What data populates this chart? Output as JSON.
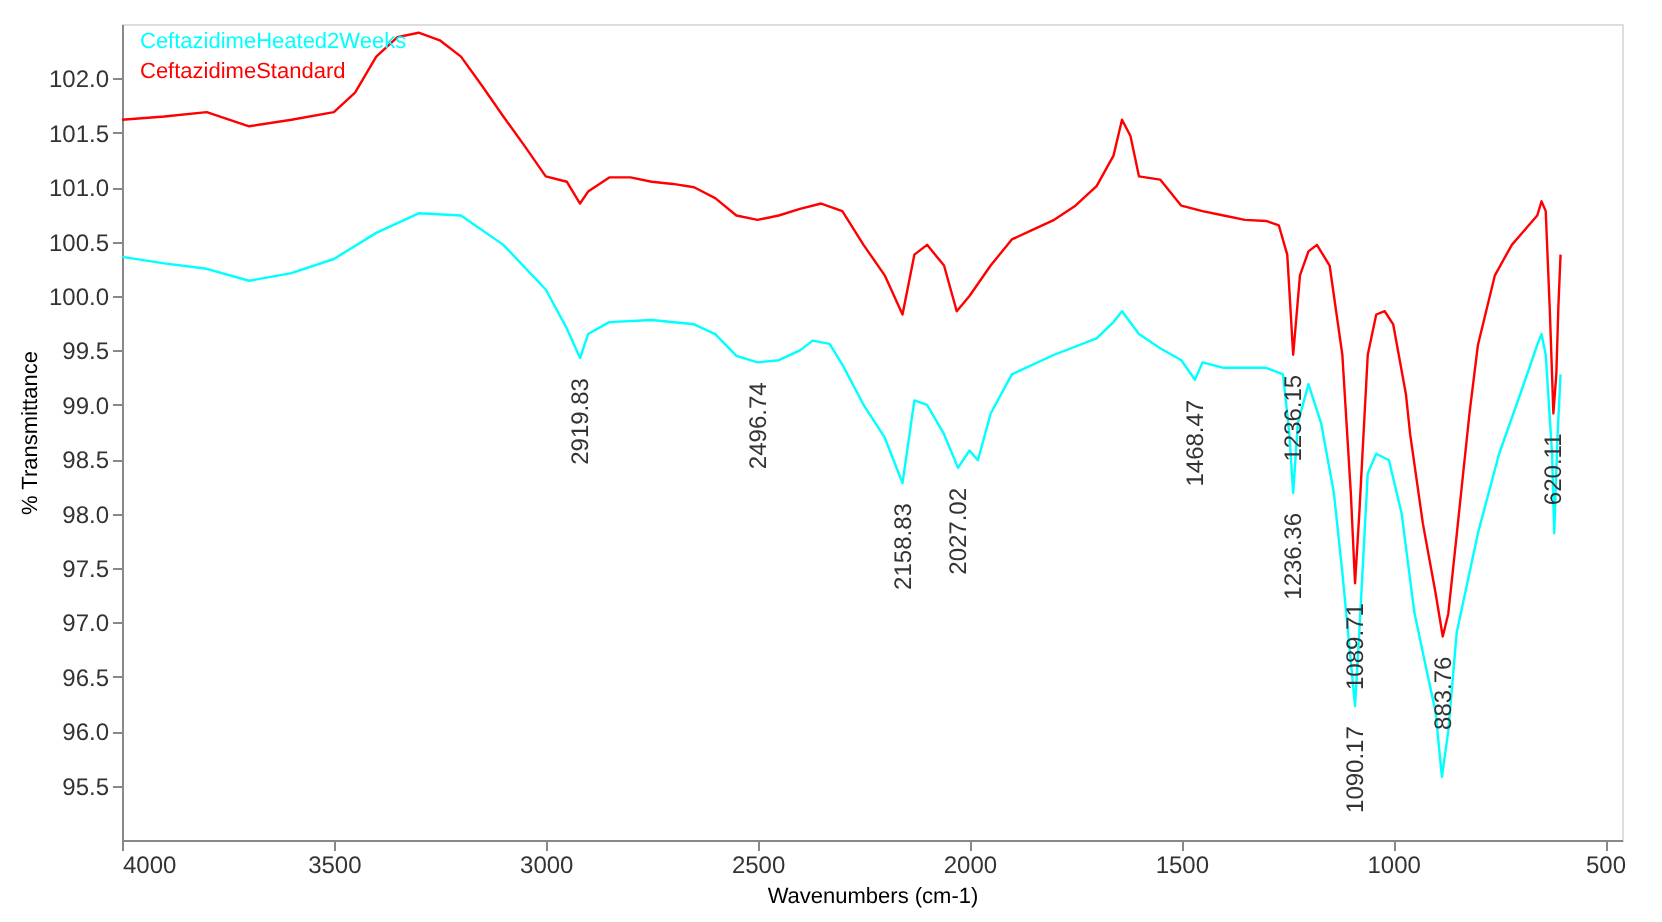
{
  "chart_data": {
    "type": "line",
    "xlabel": "Wavenumbers (cm-1)",
    "ylabel": "% Transmittance",
    "xlim": [
      4000,
      460
    ],
    "ylim": [
      95.0,
      102.5
    ],
    "xticks": [
      4000,
      3500,
      3000,
      2500,
      2000,
      1500,
      1000,
      500
    ],
    "yticks": [
      {
        "value": 95.5,
        "label": "95.5"
      },
      {
        "value": 96.0,
        "label": "96.0"
      },
      {
        "value": 96.5,
        "label": "96.5"
      },
      {
        "value": 97.0,
        "label": "97.0"
      },
      {
        "value": 97.5,
        "label": "97.5"
      },
      {
        "value": 98.0,
        "label": "98.0"
      },
      {
        "value": 98.5,
        "label": "98.5"
      },
      {
        "value": 99.0,
        "label": "99.0"
      },
      {
        "value": 99.5,
        "label": "99.5"
      },
      {
        "value": 100.0,
        "label": "100.0"
      },
      {
        "value": 100.5,
        "label": "100.5"
      },
      {
        "value": 101.0,
        "label": "101.0"
      },
      {
        "value": 101.5,
        "label": "101.5"
      },
      {
        "value": 102.0,
        "label": "102.0"
      }
    ],
    "grid": false,
    "legend": "top left",
    "line_style": "solid",
    "marker": "none",
    "series": [
      {
        "name": "CeftazidimeHeated2Weeks",
        "color": "#00ffff",
        "x": [
          4000,
          3900,
          3800,
          3700,
          3600,
          3500,
          3400,
          3300,
          3200,
          3100,
          3000,
          2950,
          2919,
          2900,
          2850,
          2750,
          2650,
          2600,
          2550,
          2500,
          2450,
          2400,
          2370,
          2330,
          2300,
          2250,
          2200,
          2158,
          2130,
          2100,
          2060,
          2027,
          2000,
          1980,
          1950,
          1900,
          1800,
          1700,
          1660,
          1640,
          1600,
          1550,
          1500,
          1468,
          1450,
          1400,
          1300,
          1260,
          1245,
          1236,
          1225,
          1200,
          1170,
          1140,
          1120,
          1100,
          1090,
          1080,
          1060,
          1040,
          1010,
          980,
          950,
          920,
          900,
          885,
          870,
          850,
          800,
          750,
          700,
          660,
          650,
          640,
          625,
          620,
          612,
          605
        ],
        "values": [
          100.36,
          100.3,
          100.25,
          100.14,
          100.21,
          100.34,
          100.58,
          100.76,
          100.74,
          100.47,
          100.06,
          99.7,
          99.43,
          99.65,
          99.76,
          99.78,
          99.74,
          99.65,
          99.45,
          99.39,
          99.41,
          99.5,
          99.59,
          99.56,
          99.37,
          99.0,
          98.7,
          98.28,
          99.04,
          99.0,
          98.73,
          98.42,
          98.58,
          98.49,
          98.92,
          99.28,
          99.46,
          99.61,
          99.76,
          99.86,
          99.65,
          99.52,
          99.41,
          99.23,
          99.39,
          99.34,
          99.34,
          99.28,
          98.73,
          98.19,
          98.83,
          99.19,
          98.83,
          98.19,
          97.46,
          96.64,
          96.23,
          96.91,
          98.37,
          98.55,
          98.49,
          98.0,
          97.09,
          96.54,
          96.18,
          95.58,
          96.0,
          96.91,
          97.82,
          98.55,
          99.1,
          99.55,
          99.65,
          99.46,
          98.55,
          97.82,
          98.73,
          99.28
        ]
      },
      {
        "name": "CeftazidimeStandard",
        "color": "#ff0000",
        "x": [
          4000,
          3900,
          3800,
          3700,
          3600,
          3500,
          3450,
          3400,
          3350,
          3300,
          3250,
          3200,
          3150,
          3100,
          3050,
          3000,
          2950,
          2919,
          2900,
          2850,
          2800,
          2750,
          2700,
          2650,
          2600,
          2550,
          2500,
          2450,
          2400,
          2350,
          2300,
          2250,
          2200,
          2158,
          2130,
          2100,
          2060,
          2030,
          2000,
          1950,
          1900,
          1850,
          1800,
          1750,
          1700,
          1660,
          1640,
          1620,
          1600,
          1550,
          1500,
          1450,
          1400,
          1350,
          1300,
          1270,
          1250,
          1236,
          1220,
          1200,
          1180,
          1150,
          1120,
          1100,
          1090,
          1080,
          1060,
          1040,
          1020,
          1000,
          970,
          960,
          930,
          900,
          883,
          870,
          850,
          820,
          800,
          760,
          720,
          680,
          660,
          650,
          640,
          630,
          622,
          615,
          610,
          605
        ],
        "values": [
          101.62,
          101.65,
          101.69,
          101.56,
          101.62,
          101.69,
          101.87,
          102.2,
          102.38,
          102.42,
          102.35,
          102.2,
          101.93,
          101.65,
          101.38,
          101.1,
          101.05,
          100.85,
          100.96,
          101.09,
          101.09,
          101.05,
          101.03,
          101.0,
          100.9,
          100.74,
          100.7,
          100.74,
          100.8,
          100.85,
          100.78,
          100.47,
          100.19,
          99.83,
          100.38,
          100.47,
          100.28,
          99.86,
          100.0,
          100.28,
          100.52,
          100.61,
          100.7,
          100.83,
          101.01,
          101.29,
          101.62,
          101.47,
          101.1,
          101.07,
          100.83,
          100.78,
          100.74,
          100.7,
          100.69,
          100.65,
          100.38,
          99.46,
          100.19,
          100.41,
          100.47,
          100.28,
          99.46,
          98.19,
          97.36,
          98.0,
          99.46,
          99.83,
          99.86,
          99.74,
          99.1,
          98.73,
          97.91,
          97.27,
          96.87,
          97.08,
          97.81,
          98.92,
          99.55,
          100.19,
          100.47,
          100.65,
          100.74,
          100.87,
          100.78,
          99.83,
          98.92,
          99.28,
          99.92,
          100.38
        ]
      }
    ],
    "annotations": [
      {
        "text": "2919.83",
        "x": 2919,
        "y": 99.43
      },
      {
        "text": "2496.74",
        "x": 2500,
        "y": 99.39
      },
      {
        "text": "2158.83",
        "x": 2158,
        "y": 98.28
      },
      {
        "text": "2027.02",
        "x": 2027,
        "y": 98.42
      },
      {
        "text": "1468.47",
        "x": 1468,
        "y": 99.23
      },
      {
        "text": "1236.15",
        "x": 1236,
        "y": 99.46
      },
      {
        "text": "1236.36",
        "x": 1236,
        "y": 98.19
      },
      {
        "text": "1089.71",
        "x": 1090,
        "y": 97.36
      },
      {
        "text": "1090.17",
        "x": 1090,
        "y": 96.23
      },
      {
        "text": "883.76",
        "x": 883,
        "y": 96.87
      },
      {
        "text": "620.11",
        "x": 622,
        "y": 98.92
      }
    ]
  }
}
